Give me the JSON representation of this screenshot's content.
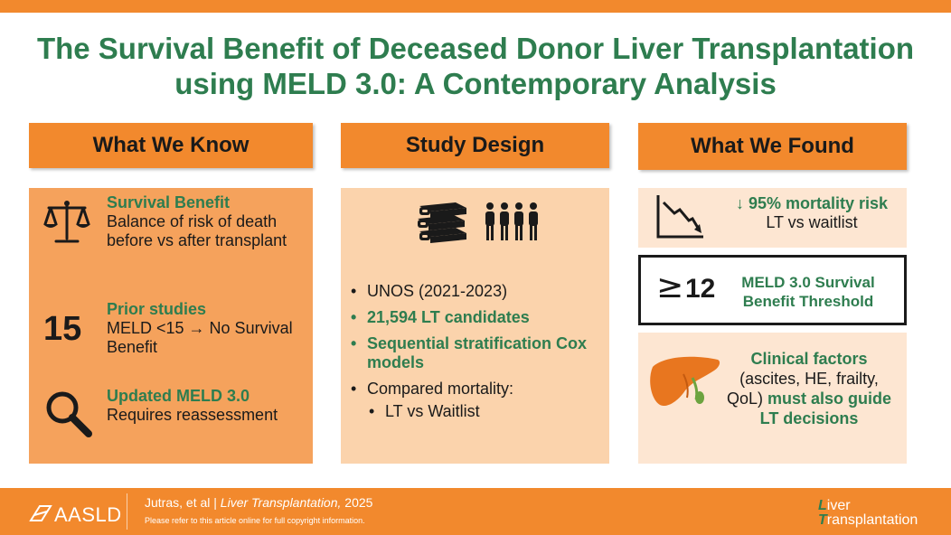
{
  "title_line1": "The Survival Benefit of Deceased Donor Liver Transplantation",
  "title_line2": "using MELD 3.0: A Contemporary Analysis",
  "columns": {
    "know": "What We Know",
    "design": "Study Design",
    "found": "What We Found"
  },
  "know": {
    "item1_heading": "Survival Benefit",
    "item1_text": "Balance of risk of death before vs after transplant",
    "item2_number": "15",
    "item2_heading": "Prior studies",
    "item2_text": "MELD <15 → No Survival Benefit",
    "item3_heading": "Updated MELD 3.0",
    "item3_text": "Requires reassessment"
  },
  "design": {
    "bullet1": "UNOS (2021-2023)",
    "bullet2": "21,594 LT candidates",
    "bullet3": "Sequential stratification Cox models",
    "bullet4": "Compared mortality:",
    "sub_bullet": "LT vs Waitlist"
  },
  "found": {
    "risk_heading": "↓ 95% mortality risk",
    "risk_sub": "LT vs waitlist",
    "threshold_symbol": "≥",
    "threshold_value": "12",
    "threshold_label": "MELD 3.0 Survival Benefit Threshold",
    "clinical_heading": "Clinical factors",
    "clinical_detail": "(ascites, HE, frailty, QoL)",
    "clinical_must": "must also guide LT decisions"
  },
  "footer": {
    "org": "AASLD",
    "authors": "Jutras, et al",
    "separator": "|",
    "journal": "Liver Transplantation,",
    "year": "2025",
    "copyright": "Please refer to this article online for full copyright information.",
    "logo_line1_first": "L",
    "logo_line1_rest": "iver",
    "logo_line2_first": "T",
    "logo_line2_rest": "ransplantation"
  },
  "colors": {
    "orange": "#f2892d",
    "green": "#2e7d4f",
    "panel_know": "#f5a25c",
    "panel_design": "#fbd3ac",
    "panel_found": "#fde6d2"
  },
  "icons": [
    "scale-icon",
    "magnifier-icon",
    "books-icon",
    "people-icon",
    "declining-chart-icon",
    "liver-icon"
  ]
}
